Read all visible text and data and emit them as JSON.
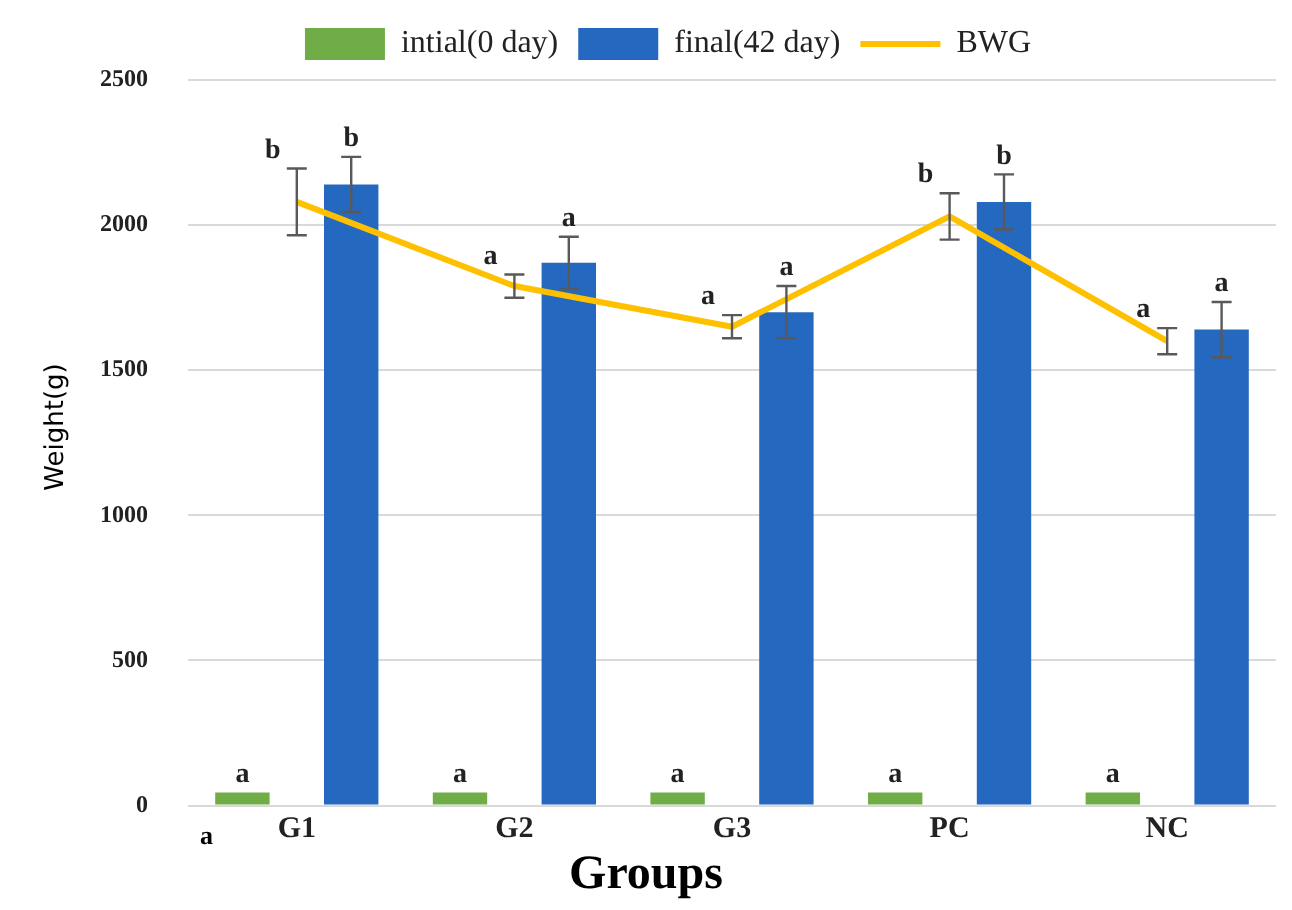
{
  "chart_data": {
    "type": "bar",
    "xlabel": "Groups",
    "ylabel": "Weight(g)",
    "categories": [
      "G1",
      "G2",
      "G3",
      "PC",
      "NC"
    ],
    "series": [
      {
        "name": "intial(0 day)",
        "color": "#70ad47",
        "values": [
          45,
          45,
          45,
          45,
          45
        ]
      },
      {
        "name": "final(42 day)",
        "color": "#2568bf",
        "values": [
          2140,
          1870,
          1700,
          2080,
          1640
        ],
        "errors": [
          95,
          90,
          90,
          95,
          95
        ]
      },
      {
        "name": "BWG",
        "type": "line",
        "color": "#ffc000",
        "values": [
          2080,
          1790,
          1650,
          2030,
          1600
        ],
        "errors": [
          115,
          40,
          40,
          80,
          45
        ]
      }
    ],
    "ylim": [
      0,
      2500
    ],
    "yticks": [
      0,
      500,
      1000,
      1500,
      2000,
      2500
    ],
    "grid": "y",
    "legend": "top",
    "annotations": [
      "a",
      "b",
      "b",
      "a",
      "a",
      "a",
      "a",
      "a",
      "a",
      "a",
      "b",
      "b",
      "a",
      "a",
      "a",
      "a"
    ]
  }
}
